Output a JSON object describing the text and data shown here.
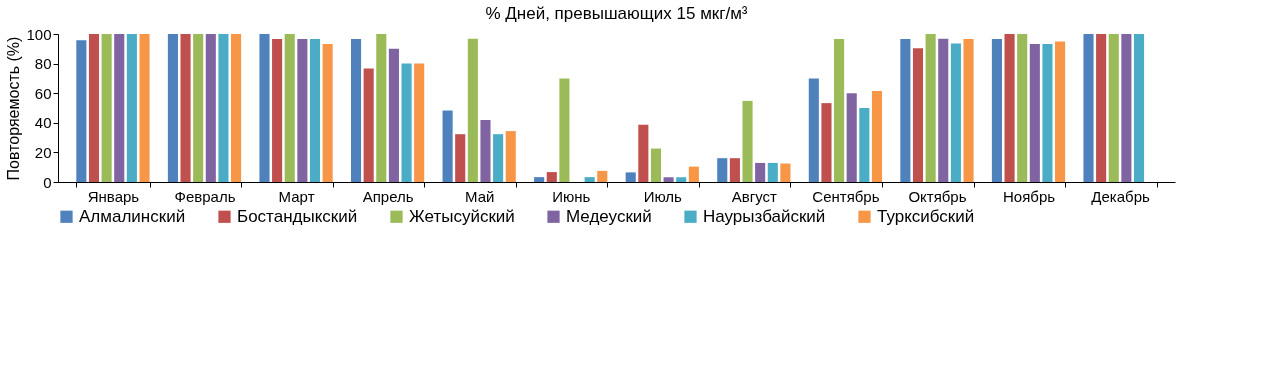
{
  "chart_data": {
    "type": "bar",
    "title": "% Дней, превышающих 15 мкг/м³",
    "ylabel": "Повторяемость (%)",
    "categories": [
      "Январь",
      "Февраль",
      "Март",
      "Апрель",
      "Май",
      "Июнь",
      "Июль",
      "Август",
      "Сентябрь",
      "Октябрь",
      "Ноябрь",
      "Декабрь"
    ],
    "ylim": [
      0,
      100
    ],
    "yticks": [
      0,
      20,
      40,
      60,
      80,
      100
    ],
    "grid": false,
    "legend": "bottom",
    "series": [
      {
        "name": "Алмалинский",
        "color": "#4f81bd",
        "values": [
          95.7,
          100,
          100,
          96.7,
          48.3,
          3.3,
          6.5,
          16.1,
          70,
          96.7,
          96.7,
          100
        ]
      },
      {
        "name": "Бостандыкский",
        "color": "#c0504d",
        "values": [
          100,
          100,
          96.7,
          76.7,
          32.3,
          6.7,
          38.7,
          16.1,
          53.3,
          90.3,
          100,
          100
        ]
      },
      {
        "name": "Жетысуйский",
        "color": "#9bbb59",
        "values": [
          100,
          100,
          100,
          100,
          96.8,
          70,
          22.6,
          54.8,
          96.7,
          100,
          100,
          100
        ]
      },
      {
        "name": "Медеуский",
        "color": "#8064a2",
        "values": [
          100,
          100,
          96.7,
          90,
          41.9,
          null,
          3.2,
          12.9,
          60,
          96.8,
          93.3,
          100
        ]
      },
      {
        "name": "Наурызбайский",
        "color": "#4bacc6",
        "values": [
          100,
          100,
          96.7,
          80,
          32.3,
          3.3,
          3.2,
          12.9,
          50,
          93.5,
          93.3,
          100
        ]
      },
      {
        "name": "Турксибский",
        "color": "#f79646",
        "values": [
          100,
          100,
          93.3,
          80,
          34.4,
          7.5,
          10.4,
          12.5,
          61.5,
          96.7,
          95,
          null
        ]
      }
    ]
  }
}
